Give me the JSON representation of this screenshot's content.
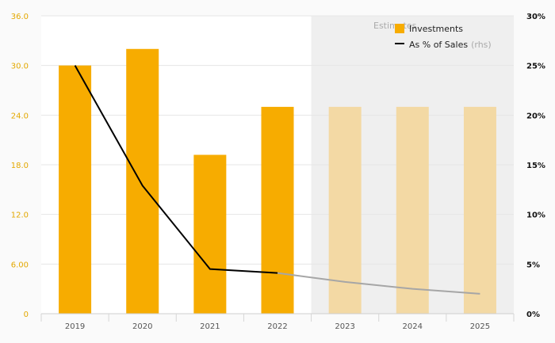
{
  "chart_data": {
    "type": "bar",
    "categories": [
      "2019",
      "2020",
      "2021",
      "2022",
      "2023",
      "2024",
      "2025"
    ],
    "y_left": {
      "ticks": [
        "0",
        "6.00",
        "12.0",
        "18.0",
        "24.0",
        "30.0",
        "36.0"
      ],
      "lim": [
        0,
        36
      ]
    },
    "y_right": {
      "ticks": [
        "0%",
        "5%",
        "10%",
        "15%",
        "20%",
        "25%",
        "30%"
      ],
      "lim": [
        0,
        30
      ]
    },
    "series": [
      {
        "name": "Investments",
        "type": "bar",
        "axis": "left",
        "values": [
          30.0,
          32.0,
          19.2,
          25.0,
          25.0,
          25.0,
          25.0
        ],
        "color": "#f7ac00",
        "estimate_color": "#f3d9a4"
      },
      {
        "name": "As % of Sales",
        "type": "line",
        "axis": "right",
        "values": [
          25.0,
          12.9,
          4.5,
          4.1,
          3.2,
          2.5,
          2.0
        ],
        "color": "#000000",
        "estimate_color": "#a6a6a6"
      }
    ],
    "estimate_label": "Estimates",
    "estimate_start_index": 4,
    "legend": {
      "position": "top-right",
      "items": [
        {
          "label": "Investments"
        },
        {
          "label": "As % of Sales",
          "suffix": "(rhs)"
        }
      ]
    },
    "grid": true
  }
}
